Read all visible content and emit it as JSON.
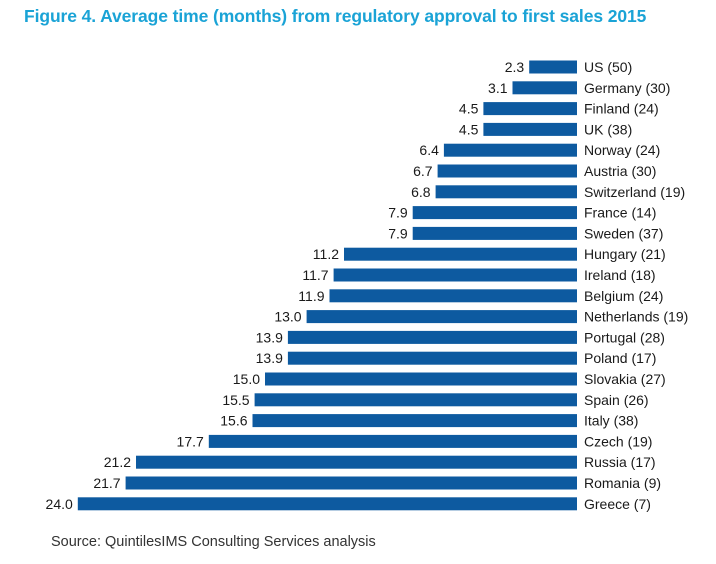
{
  "colors": {
    "title": "#1aa3d6",
    "bar": "#0d5aa0",
    "text": "#1a1a1a"
  },
  "chart_data": {
    "type": "bar",
    "orientation": "horizontal",
    "title": "Figure 4. Average time (months) from regulatory approval to first sales 2015",
    "source": "Source: QuintilesIMS Consulting Services analysis",
    "categories": [
      "US (50)",
      "Germany (30)",
      "Finland (24)",
      "UK (38)",
      "Norway (24)",
      "Austria (30)",
      "Switzerland (19)",
      "France (14)",
      "Sweden (37)",
      "Hungary (21)",
      "Ireland (18)",
      "Belgium (24)",
      "Netherlands (19)",
      "Portugal (28)",
      "Poland (17)",
      "Slovakia (27)",
      "Spain (26)",
      "Italy (38)",
      "Czech (19)",
      "Russia (17)",
      "Romania (9)",
      "Greece (7)"
    ],
    "values": [
      2.3,
      3.1,
      4.5,
      4.5,
      6.4,
      6.7,
      6.8,
      7.9,
      7.9,
      11.2,
      11.7,
      11.9,
      13.0,
      13.9,
      13.9,
      15.0,
      15.5,
      15.6,
      17.7,
      21.2,
      21.7,
      24.0
    ],
    "value_labels": [
      "2.3",
      "3.1",
      "4.5",
      "4.5",
      "6.4",
      "6.7",
      "6.8",
      "7.9",
      "7.9",
      "11.2",
      "11.7",
      "11.9",
      "13.0",
      "13.9",
      "13.9",
      "15.0",
      "15.5",
      "15.6",
      "17.7",
      "21.2",
      "21.7",
      "24.0"
    ],
    "bars_extend": "leftward",
    "value_label_position": "left of bar",
    "category_label_position": "right of bars",
    "xlim": [
      0,
      24
    ],
    "grid": false,
    "legend": "none",
    "xlabel": "",
    "ylabel": ""
  }
}
